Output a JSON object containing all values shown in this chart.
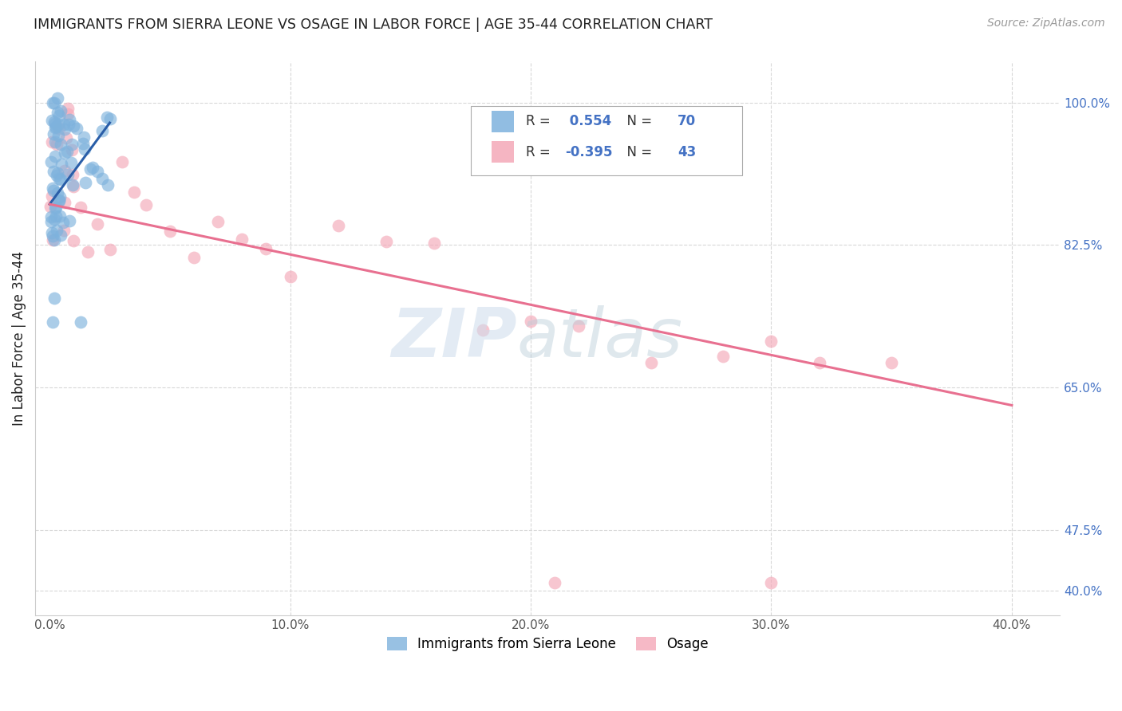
{
  "title": "IMMIGRANTS FROM SIERRA LEONE VS OSAGE IN LABOR FORCE | AGE 35-44 CORRELATION CHART",
  "source_text": "Source: ZipAtlas.com",
  "ylabel": "In Labor Force | Age 35-44",
  "xlabel_ticks": [
    "0.0%",
    "10.0%",
    "20.0%",
    "30.0%",
    "40.0%"
  ],
  "xlabel_vals": [
    0.0,
    0.1,
    0.2,
    0.3,
    0.4
  ],
  "ylabel_ticks": [
    "100.0%",
    "82.5%",
    "65.0%",
    "47.5%",
    "40.0%"
  ],
  "ylabel_vals": [
    1.0,
    0.825,
    0.65,
    0.475,
    0.4
  ],
  "ylim": [
    0.37,
    1.05
  ],
  "xlim": [
    -0.006,
    0.42
  ],
  "blue_R": 0.554,
  "blue_N": 70,
  "pink_R": -0.395,
  "pink_N": 43,
  "blue_color": "#7EB2DD",
  "pink_color": "#F4A8B8",
  "blue_line_color": "#2A5EA8",
  "pink_line_color": "#E87090",
  "legend_blue_label": "Immigrants from Sierra Leone",
  "legend_pink_label": "Osage",
  "background_color": "#ffffff",
  "grid_color": "#d8d8d8",
  "title_color": "#222222",
  "axis_label_color": "#222222",
  "tick_color_right": "#4472C4",
  "blue_line_x0": 0.0,
  "blue_line_y0": 0.875,
  "blue_line_x1": 0.025,
  "blue_line_y1": 0.975,
  "pink_line_x0": 0.0,
  "pink_line_y0": 0.875,
  "pink_line_x1": 0.4,
  "pink_line_y1": 0.628
}
